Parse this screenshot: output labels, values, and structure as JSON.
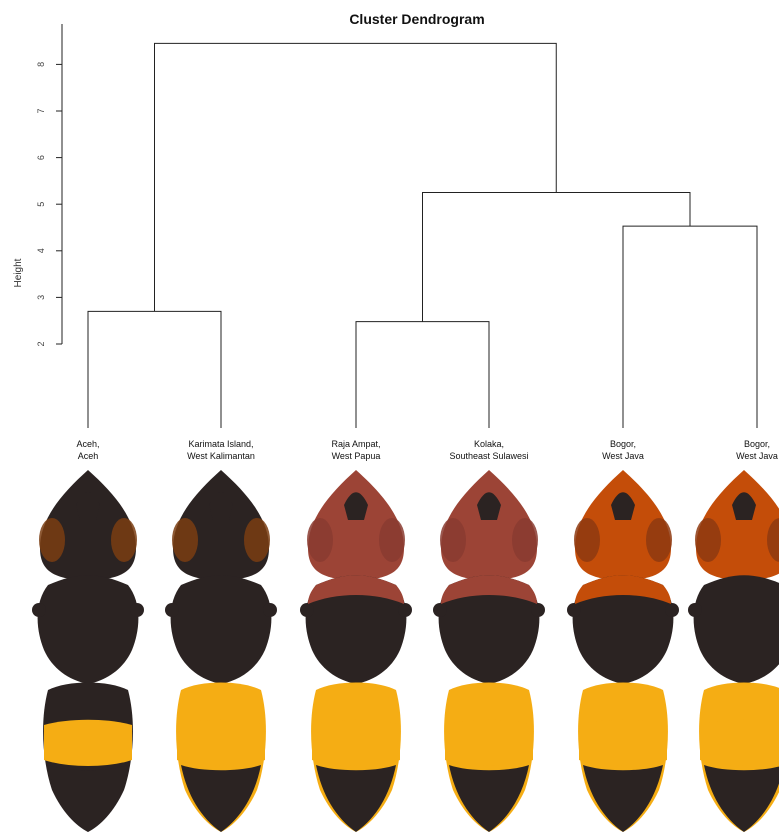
{
  "chart_data": {
    "type": "dendrogram",
    "title": "Cluster Dendrogram",
    "ylabel": "Height",
    "ylim": [
      2,
      8
    ],
    "yticks": [
      2,
      3,
      4,
      5,
      6,
      7,
      8
    ],
    "leaves": [
      {
        "line1": "Aceh,",
        "line2": "Aceh",
        "head": "#2b2322",
        "head_spot": "#7a3d12",
        "thorax": "#2b2322",
        "thorax_band": "",
        "abdomen_band": "#f5ad14",
        "abdomen_base": "#2b2322"
      },
      {
        "line1": "Karimata Island,",
        "line2": "West Kalimantan",
        "head": "#2b2322",
        "head_spot": "#7a3d12",
        "thorax": "#2b2322",
        "thorax_band": "",
        "abdomen_band": "#f5ad14",
        "abdomen_base": "#f5ad14"
      },
      {
        "line1": "Raja Ampat,",
        "line2": "West Papua",
        "head": "#9c4436",
        "head_spot": "#8a3b30",
        "thorax": "#2b2322",
        "thorax_band": "#9c4436",
        "abdomen_band": "#f5ad14",
        "abdomen_base": "#f5ad14"
      },
      {
        "line1": "Kolaka,",
        "line2": "Southeast Sulawesi",
        "head": "#9c4436",
        "head_spot": "#8a3b30",
        "thorax": "#2b2322",
        "thorax_band": "#9c4436",
        "abdomen_band": "#f5ad14",
        "abdomen_base": "#f5ad14"
      },
      {
        "line1": "Bogor,",
        "line2": "West Java",
        "head": "#c44d09",
        "head_spot": "#8e3a10",
        "thorax": "#2b2322",
        "thorax_band": "#c44d09",
        "abdomen_band": "#f5ad14",
        "abdomen_base": "#f5ad14"
      },
      {
        "line1": "Bogor,",
        "line2": "West Java",
        "head": "#c44d09",
        "head_spot": "#8e3a10",
        "thorax": "#2b2322",
        "thorax_band": "",
        "abdomen_band": "#f5ad14",
        "abdomen_base": "#f5ad14"
      }
    ],
    "merges": [
      {
        "left": 0,
        "right": 1,
        "height": 2.7
      },
      {
        "left": 2,
        "right": 3,
        "height": 2.48
      },
      {
        "left": 4,
        "right": 5,
        "height": 4.53
      },
      {
        "left": "m2",
        "right": "m3",
        "height": 5.25
      },
      {
        "left": "m1",
        "right": "m4",
        "height": 8.45
      }
    ]
  }
}
